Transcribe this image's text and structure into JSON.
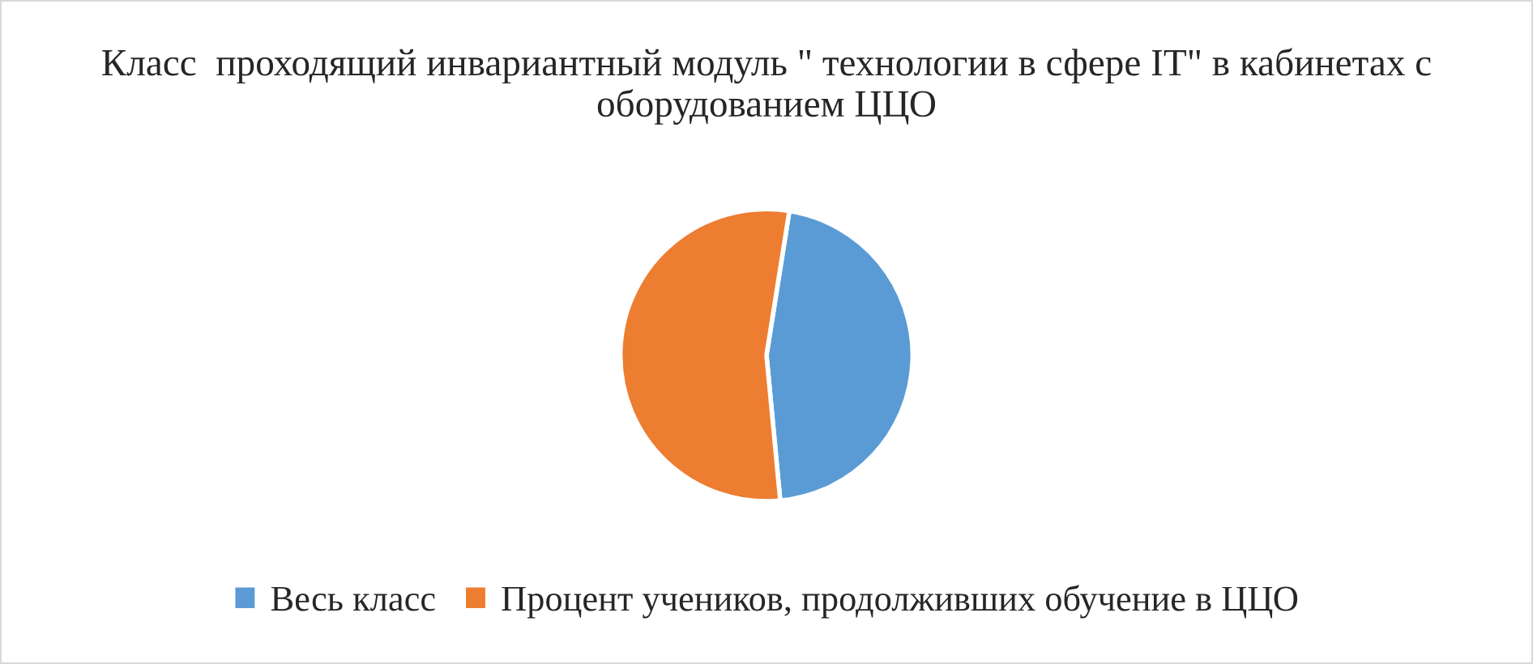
{
  "chart_data": {
    "type": "pie",
    "title": "Класс  проходящий инвариантный модуль \" технологии в сфере IT\" в кабинетах с оборудованием ЦЦО",
    "categories": [
      "Весь класс",
      "Процент учеников, продолживших обучение в ЦЦО"
    ],
    "values": [
      46,
      54
    ],
    "colors": [
      "#5b9bd5",
      "#ed7d31"
    ],
    "legend": "bottom"
  }
}
